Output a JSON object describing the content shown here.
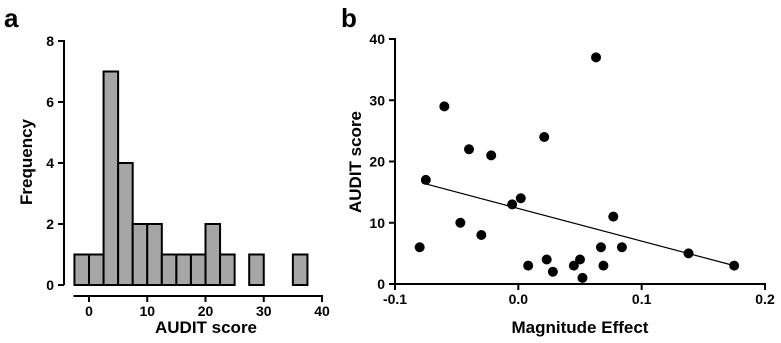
{
  "colors": {
    "bar_fill": "#a6a6a6",
    "ink": "#000000"
  },
  "chart_data": [
    {
      "panel_label": "a",
      "type": "bar",
      "subtype": "histogram",
      "xlabel": "AUDIT score",
      "ylabel": "Frequency",
      "xlim": [
        -2.5,
        40
      ],
      "ylim": [
        0,
        8
      ],
      "xticks": [
        0,
        10,
        20,
        30,
        40
      ],
      "yticks": [
        0,
        2,
        4,
        6,
        8
      ],
      "bins": [
        {
          "start": -2.5,
          "end": 0.0,
          "count": 1
        },
        {
          "start": 0.0,
          "end": 2.5,
          "count": 1
        },
        {
          "start": 2.5,
          "end": 5.0,
          "count": 7
        },
        {
          "start": 5.0,
          "end": 7.5,
          "count": 4
        },
        {
          "start": 7.5,
          "end": 10.0,
          "count": 2
        },
        {
          "start": 10.0,
          "end": 12.5,
          "count": 2
        },
        {
          "start": 12.5,
          "end": 15.0,
          "count": 1
        },
        {
          "start": 15.0,
          "end": 17.5,
          "count": 1
        },
        {
          "start": 17.5,
          "end": 20.0,
          "count": 1
        },
        {
          "start": 20.0,
          "end": 22.5,
          "count": 2
        },
        {
          "start": 22.5,
          "end": 25.0,
          "count": 1
        },
        {
          "start": 25.0,
          "end": 27.5,
          "count": 0
        },
        {
          "start": 27.5,
          "end": 30.0,
          "count": 1
        },
        {
          "start": 30.0,
          "end": 32.5,
          "count": 0
        },
        {
          "start": 32.5,
          "end": 35.0,
          "count": 0
        },
        {
          "start": 35.0,
          "end": 37.5,
          "count": 1
        }
      ],
      "grid": false
    },
    {
      "panel_label": "b",
      "type": "scatter",
      "xlabel": "Magnitude Effect",
      "ylabel": "AUDIT score",
      "xlim": [
        -0.1,
        0.2
      ],
      "ylim": [
        0,
        40
      ],
      "xticks": [
        -0.1,
        0.0,
        0.1,
        0.2
      ],
      "xtick_labels": [
        "-0.1",
        "0.0",
        "0.1",
        "0.2"
      ],
      "yticks": [
        0,
        10,
        20,
        30,
        40
      ],
      "points": [
        {
          "x": -0.08,
          "y": 6
        },
        {
          "x": -0.075,
          "y": 17
        },
        {
          "x": -0.06,
          "y": 29
        },
        {
          "x": -0.047,
          "y": 10
        },
        {
          "x": -0.04,
          "y": 22
        },
        {
          "x": -0.03,
          "y": 8
        },
        {
          "x": -0.022,
          "y": 21
        },
        {
          "x": -0.005,
          "y": 13
        },
        {
          "x": 0.002,
          "y": 14
        },
        {
          "x": 0.008,
          "y": 3
        },
        {
          "x": 0.021,
          "y": 24
        },
        {
          "x": 0.023,
          "y": 4
        },
        {
          "x": 0.028,
          "y": 2
        },
        {
          "x": 0.045,
          "y": 3
        },
        {
          "x": 0.05,
          "y": 4
        },
        {
          "x": 0.052,
          "y": 1
        },
        {
          "x": 0.063,
          "y": 37
        },
        {
          "x": 0.067,
          "y": 6
        },
        {
          "x": 0.069,
          "y": 3
        },
        {
          "x": 0.077,
          "y": 11
        },
        {
          "x": 0.084,
          "y": 6
        },
        {
          "x": 0.138,
          "y": 5
        },
        {
          "x": 0.175,
          "y": 3
        }
      ],
      "fit_line": {
        "x": [
          -0.078,
          0.175
        ],
        "y": [
          16.5,
          3
        ]
      },
      "grid": false
    }
  ]
}
